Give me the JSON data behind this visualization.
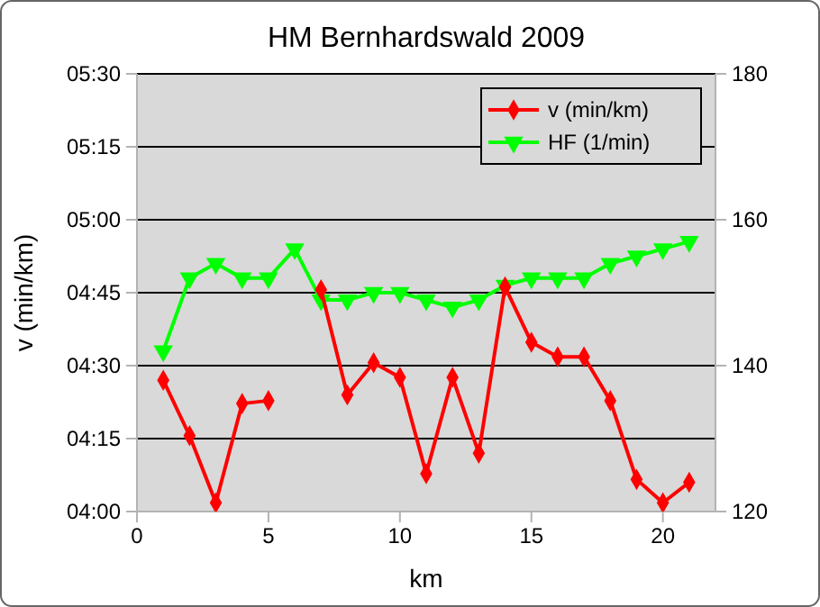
{
  "chart_data": {
    "type": "line",
    "title": "HM Bernhardswald 2009",
    "xlabel": "km",
    "ylabel": "v (min/km)",
    "x": [
      1,
      2,
      3,
      4,
      5,
      6,
      7,
      8,
      9,
      10,
      11,
      12,
      13,
      14,
      15,
      16,
      17,
      18,
      19,
      20,
      21
    ],
    "series": [
      {
        "name": "v (min/km)",
        "color": "#ff0000",
        "marker": "diamond",
        "values": [
          4.45,
          4.26,
          4.03,
          4.37,
          4.38,
          null,
          4.76,
          4.4,
          4.51,
          4.46,
          4.13,
          4.46,
          4.2,
          4.77,
          4.58,
          4.53,
          4.53,
          4.38,
          4.11,
          4.03,
          4.1
        ]
      },
      {
        "name": "HF (1/min)",
        "color": "#00ff00",
        "marker": "triangle",
        "axis": "y2",
        "values": [
          142,
          152,
          154,
          152,
          152,
          156,
          149,
          149,
          150,
          150,
          149,
          148,
          149,
          151,
          152,
          152,
          152,
          154,
          155,
          156,
          157
        ]
      }
    ],
    "xlim": [
      0,
      22
    ],
    "xticks": [
      0,
      5,
      10,
      15,
      20
    ],
    "ylim": [
      4,
      5.5
    ],
    "yticks": [
      {
        "value": 4,
        "label": "04:00"
      },
      {
        "value": 4.25,
        "label": "04:15"
      },
      {
        "value": 4.5,
        "label": "04:30"
      },
      {
        "value": 4.75,
        "label": "04:45"
      },
      {
        "value": 5,
        "label": "05:00"
      },
      {
        "value": 5.25,
        "label": "05:15"
      },
      {
        "value": 5.5,
        "label": "05:30"
      }
    ],
    "y2lim": [
      120,
      180
    ],
    "y2ticks": [
      120,
      140,
      160,
      180
    ],
    "grid": "y",
    "legend": "top right"
  }
}
